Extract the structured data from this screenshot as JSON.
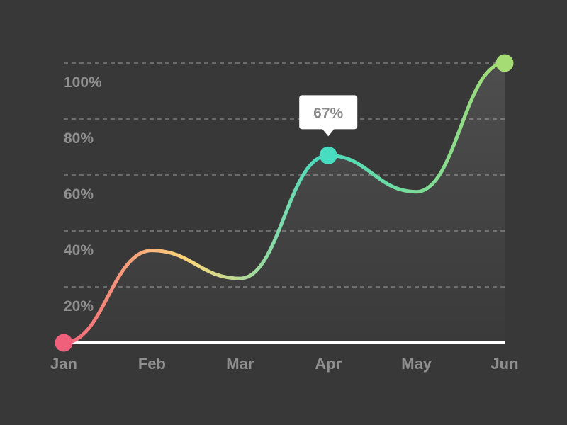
{
  "chart_data": {
    "type": "line",
    "categories": [
      "Jan",
      "Feb",
      "Mar",
      "Apr",
      "May",
      "Jun"
    ],
    "values": [
      0,
      33,
      23,
      67,
      54,
      100
    ],
    "ylim": [
      0,
      100
    ],
    "yticks": [
      "20%",
      "40%",
      "60%",
      "80%",
      "100%"
    ],
    "ytick_values": [
      20,
      40,
      60,
      80,
      100
    ],
    "grid": true,
    "curve": "smooth",
    "tooltip": {
      "category": "Apr",
      "label": "67%"
    },
    "colors": {
      "background": "#383838",
      "gradient": [
        "#f0607a",
        "#fdd77a",
        "#48dcc0",
        "#a6dc74"
      ],
      "baseline": "#ffffff",
      "grid": "#7a7a7a",
      "tick_text": "#8f8f8f",
      "tooltip_bg": "#ffffff",
      "tooltip_text": "#8a8a8a"
    }
  }
}
